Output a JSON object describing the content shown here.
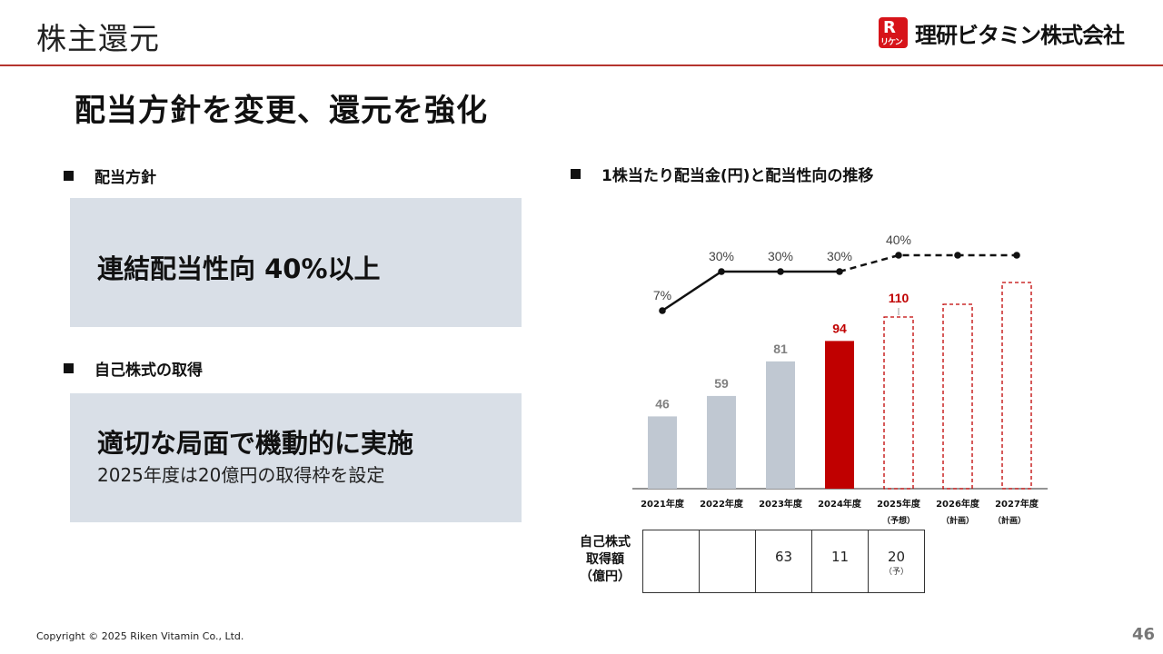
{
  "header": {
    "title": "株主還元",
    "logo_mark_letter": "R",
    "logo_mark_sub": "リケン",
    "company_name": "理研ビタミン株式会社"
  },
  "main_heading": "配当方針を変更、還元を強化",
  "left": {
    "policy_label": "配当方針",
    "policy_text": "連結配当性向 40%以上",
    "buyback_label": "自己株式の取得",
    "buyback_text": "適切な局面で機動的に実施",
    "buyback_sub": "2025年度は20億円の取得枠を設定"
  },
  "chart_title": "1株当たり配当金(円)と配当性向の推移",
  "chart_data": {
    "type": "bar",
    "title": "1株当たり配当金(円)と配当性向の推移",
    "categories": [
      "2021年度",
      "2022年度",
      "2023年度",
      "2024年度",
      "2025年度",
      "2026年度",
      "2027年度"
    ],
    "category_sub": [
      "",
      "",
      "",
      "",
      "（予想）",
      "（計画）",
      "（計画）"
    ],
    "series": [
      {
        "values": [
          46,
          59,
          81,
          94,
          110,
          null,
          null
        ],
        "value_labels": [
          "46",
          "59",
          "81",
          "94",
          "110",
          "",
          ""
        ]
      },
      {
        "values": [
          7,
          30,
          30,
          30,
          40,
          40,
          40
        ],
        "value_labels": [
          "7%",
          "30%",
          "30%",
          "30%",
          "40%",
          "",
          ""
        ]
      }
    ],
    "colors": {
      "actual": "#c0c8d2",
      "highlight": "#c00000",
      "forecast_outline": "#c00000",
      "line": "#111111",
      "actual_label": "#808080"
    },
    "ylim": [
      0,
      130
    ]
  },
  "buyback_table": {
    "header": [
      "自己株式",
      "取得額",
      "（億円）"
    ],
    "cells": [
      {
        "value": "",
        "sub": ""
      },
      {
        "value": "",
        "sub": ""
      },
      {
        "value": "63",
        "sub": ""
      },
      {
        "value": "11",
        "sub": ""
      },
      {
        "value": "20",
        "sub": "（予）"
      }
    ]
  },
  "footer": {
    "copyright": "Copyright © 2025 Riken Vitamin Co., Ltd.",
    "page": "46"
  }
}
